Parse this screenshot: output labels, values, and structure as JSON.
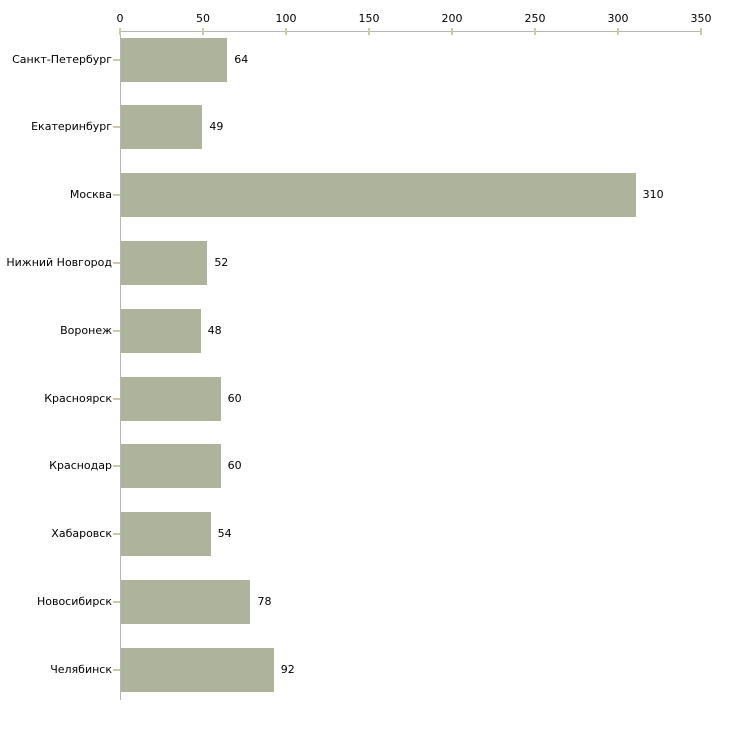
{
  "chart_data": {
    "type": "bar",
    "orientation": "horizontal",
    "title": "",
    "xlabel": "",
    "ylabel": "",
    "categories": [
      "Санкт-Петербург",
      "Екатеринбург",
      "Москва",
      "Нижний Новгород",
      "Воронеж",
      "Красноярск",
      "Краснодар",
      "Хабаровск",
      "Новосибирск",
      "Челябинск"
    ],
    "values": [
      64,
      49,
      310,
      52,
      48,
      60,
      60,
      54,
      78,
      92
    ],
    "x_ticks": [
      "0",
      "50",
      "100",
      "150",
      "200",
      "250",
      "300",
      "350"
    ],
    "x_tick_values": [
      0,
      50,
      100,
      150,
      200,
      250,
      300,
      350
    ],
    "xlim": [
      0,
      350
    ],
    "grid": false,
    "legend_position": "none",
    "show_value_labels": true,
    "axis_position": "top",
    "colors": {
      "bar": "#adb49b",
      "axis": "#b5b5b5",
      "tick": "#cdc9a2",
      "text": "#000000",
      "background": "#ffffff"
    }
  }
}
